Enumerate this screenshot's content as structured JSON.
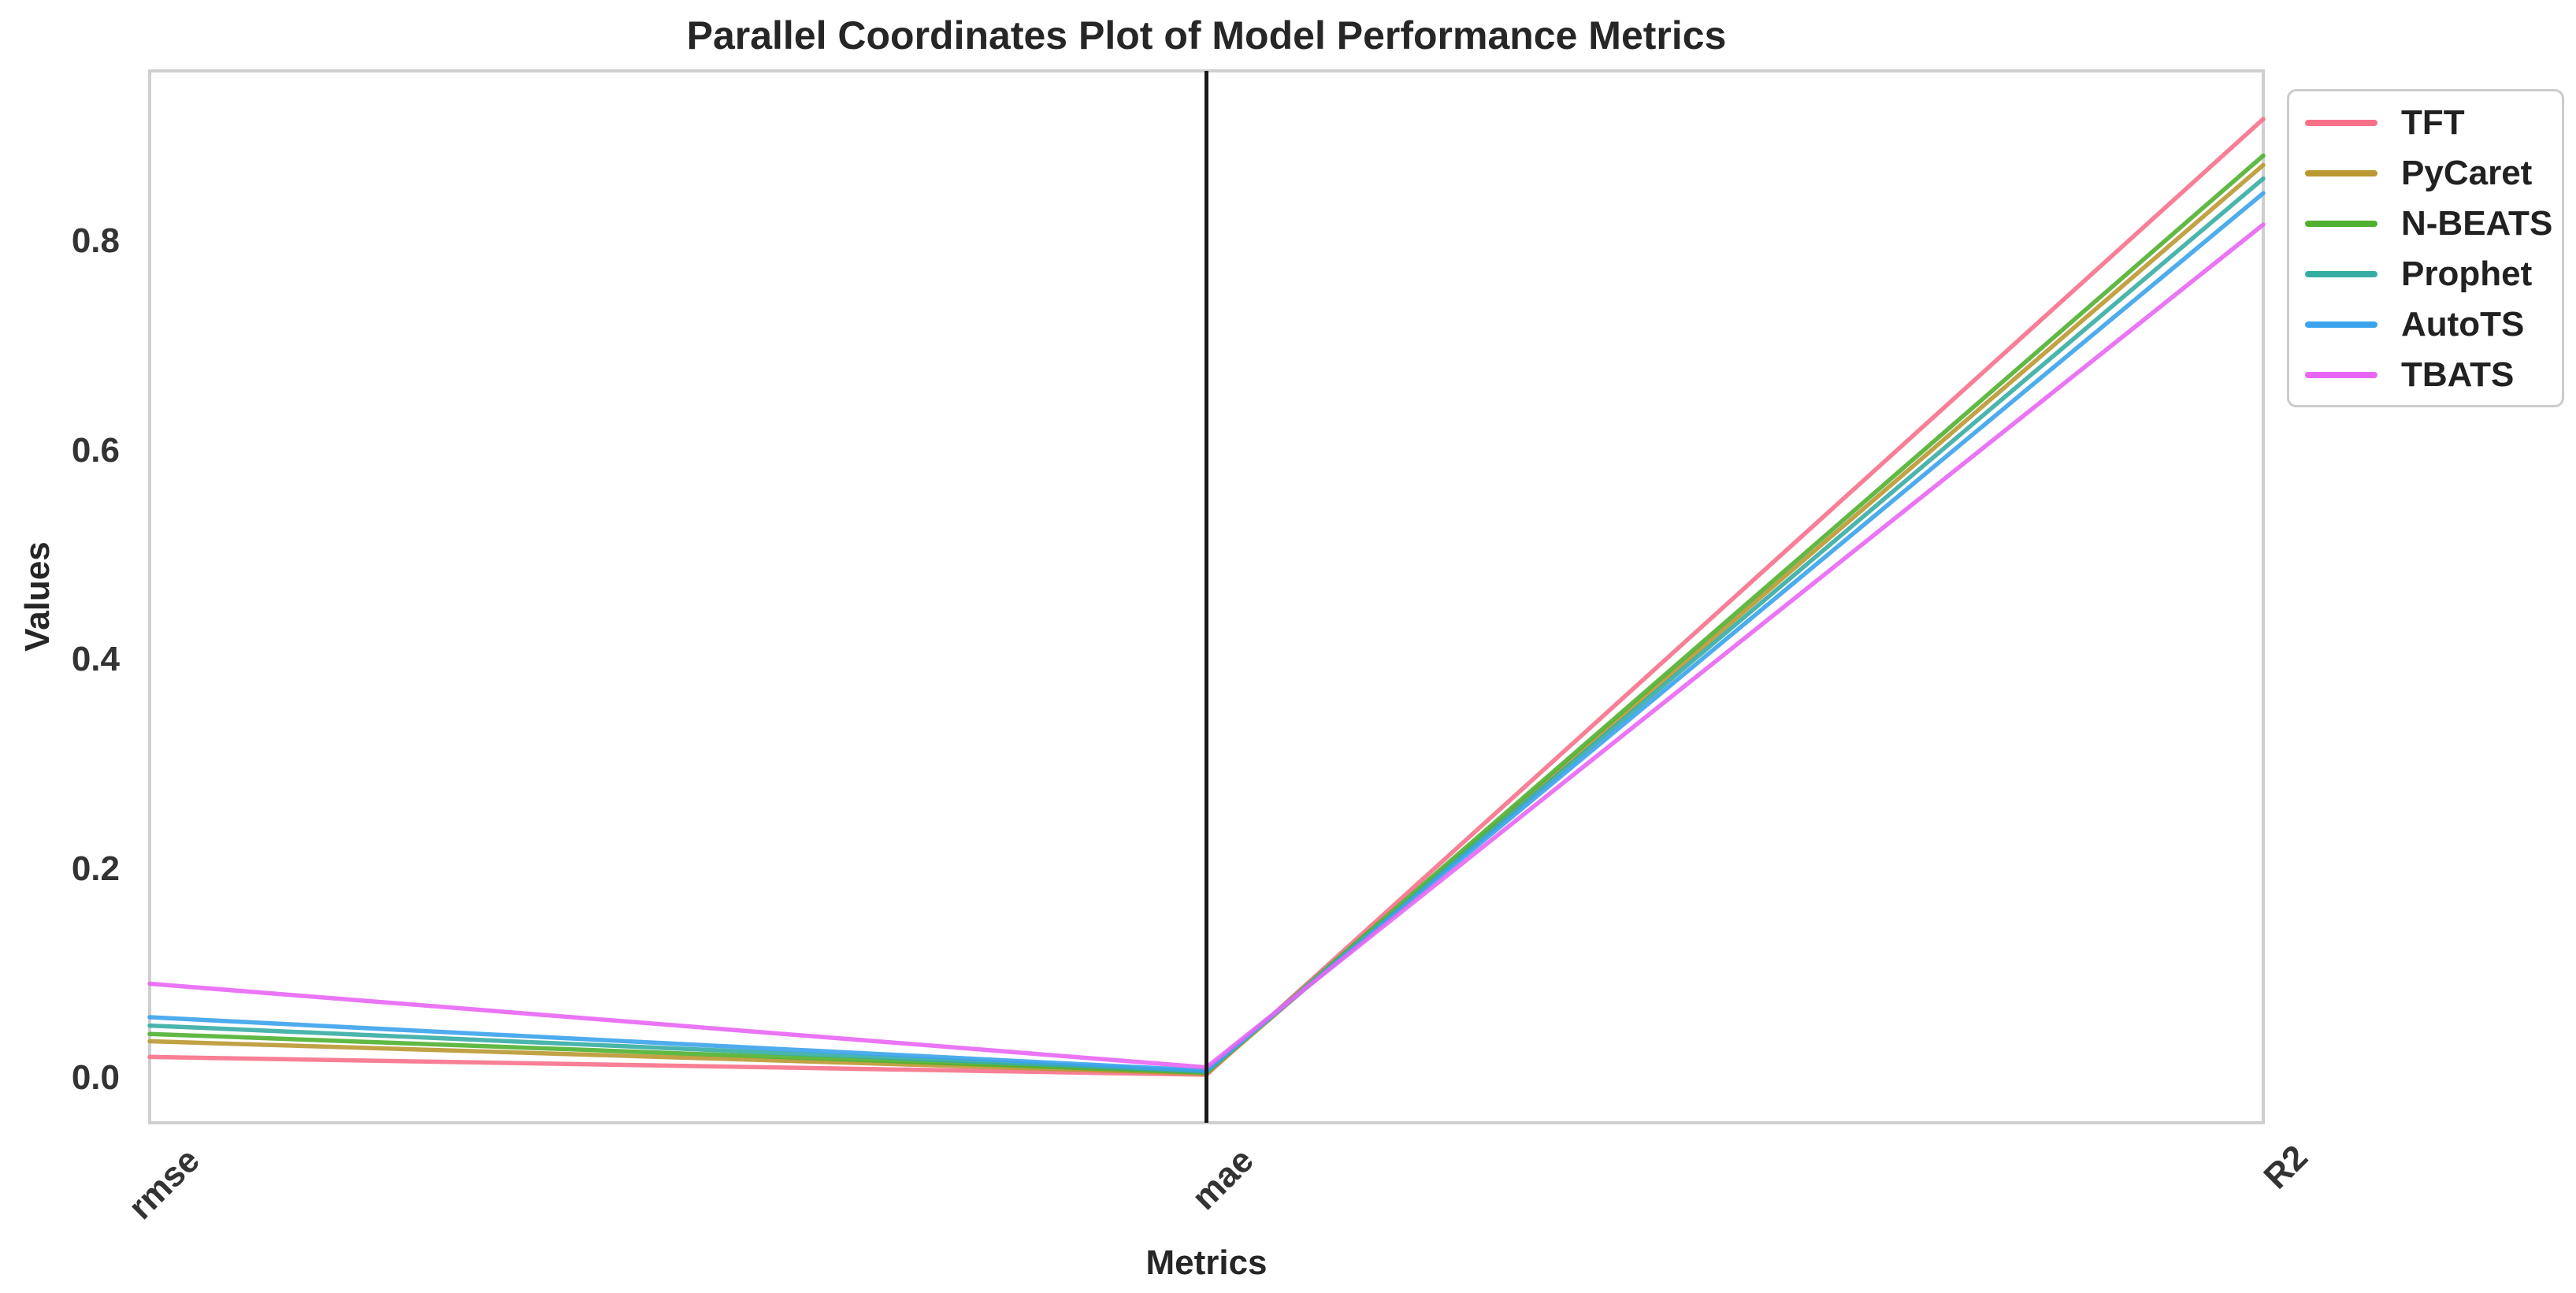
{
  "chart_data": {
    "type": "line",
    "subtype": "parallel-coordinates",
    "title": "Parallel Coordinates Plot of Model Performance Metrics",
    "xlabel": "Metrics",
    "ylabel": "Values",
    "categories": [
      "rmse",
      "mae",
      "R2"
    ],
    "ytick_labels": [
      "0.0",
      "0.2",
      "0.4",
      "0.6",
      "0.8"
    ],
    "ytick_values": [
      0.0,
      0.2,
      0.4,
      0.6,
      0.8
    ],
    "ylim": [
      -0.043,
      0.963
    ],
    "grid": false,
    "legend_position": "upper-right-outside",
    "vertical_reference_line_at": "mae",
    "reference_line_color": "#1a1a1a",
    "spine_color": "#cfcfcf",
    "series": [
      {
        "name": "TFT",
        "color": "#f77189",
        "values": [
          0.02,
          0.003,
          0.917
        ]
      },
      {
        "name": "PyCaret",
        "color": "#bb9832",
        "values": [
          0.035,
          0.004,
          0.873
        ]
      },
      {
        "name": "N-BEATS",
        "color": "#50b131",
        "values": [
          0.042,
          0.005,
          0.882
        ]
      },
      {
        "name": "Prophet",
        "color": "#36ada4",
        "values": [
          0.05,
          0.006,
          0.86
        ]
      },
      {
        "name": "AutoTS",
        "color": "#3ba3ec",
        "values": [
          0.058,
          0.007,
          0.846
        ]
      },
      {
        "name": "TBATS",
        "color": "#e866f4",
        "values": [
          0.09,
          0.01,
          0.816
        ]
      }
    ]
  }
}
